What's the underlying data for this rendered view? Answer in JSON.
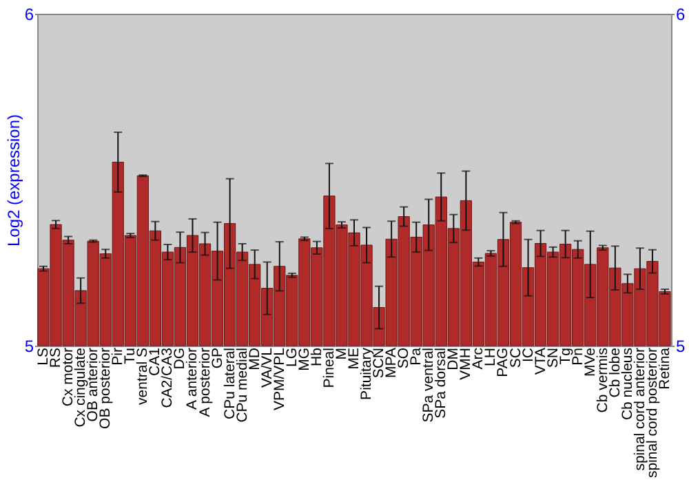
{
  "chart_data": {
    "type": "bar",
    "ylabel": "Log2 (expression)",
    "categories": [
      "LS",
      "RS",
      "Cx motor",
      "Cx cingulate",
      "OB anterior",
      "OB posterior",
      "Pir",
      "Tu",
      "ventral S",
      "CA1",
      "CA2/CA3",
      "DG",
      "A anterior",
      "A posterior",
      "GP",
      "CPu lateral",
      "CPu medial",
      "MD",
      "VA/VL",
      "VPM/VPL",
      "LG",
      "MG",
      "Hb",
      "Pineal",
      "M",
      "ME",
      "Pituitary",
      "SCN",
      "MPA",
      "SO",
      "Pa",
      "SPa ventral",
      "SPa dorsal",
      "DM",
      "VMH",
      "Arc",
      "LH",
      "PAG",
      "SC",
      "IC",
      "VTA",
      "SN",
      "Tg",
      "Pn",
      "MVe",
      "Cb vermis",
      "Cb lobe",
      "Cb nucleus",
      "spinal cord anterior",
      "spinal cord posterior",
      "Retina"
    ],
    "series": [
      {
        "color": "#b02a2a",
        "values": [
          5.232,
          5.365,
          5.318,
          5.166,
          5.315,
          5.277,
          5.553,
          5.332,
          5.512,
          5.346,
          5.282,
          5.296,
          5.332,
          5.307,
          5.285,
          5.368,
          5.282,
          5.245,
          5.173,
          5.239,
          5.212,
          5.322,
          5.295,
          5.451,
          5.364,
          5.34,
          5.303,
          5.115,
          5.321,
          5.389,
          5.327,
          5.364,
          5.448,
          5.353,
          5.437,
          5.252,
          5.278,
          5.32,
          5.372,
          5.235,
          5.308,
          5.282,
          5.306,
          5.29,
          5.245,
          5.295,
          5.234,
          5.187,
          5.232,
          5.254,
          5.163
        ],
        "errors": [
          0.007,
          0.012,
          0.011,
          0.038,
          0.003,
          0.013,
          0.09,
          0.006,
          0.002,
          0.028,
          0.023,
          0.046,
          0.05,
          0.034,
          0.087,
          0.135,
          0.025,
          0.043,
          0.079,
          0.074,
          0.006,
          0.005,
          0.019,
          0.098,
          0.009,
          0.039,
          0.053,
          0.064,
          0.054,
          0.029,
          0.045,
          0.077,
          0.072,
          0.042,
          0.089,
          0.012,
          0.008,
          0.081,
          0.004,
          0.085,
          0.039,
          0.015,
          0.041,
          0.026,
          0.1,
          0.007,
          0.066,
          0.028,
          0.062,
          0.035,
          0.007
        ]
      }
    ],
    "ylim": [
      5,
      6
    ],
    "yticks": [
      5,
      6
    ],
    "y2lim": [
      5,
      6
    ],
    "y2ticks": [
      5,
      6
    ]
  }
}
